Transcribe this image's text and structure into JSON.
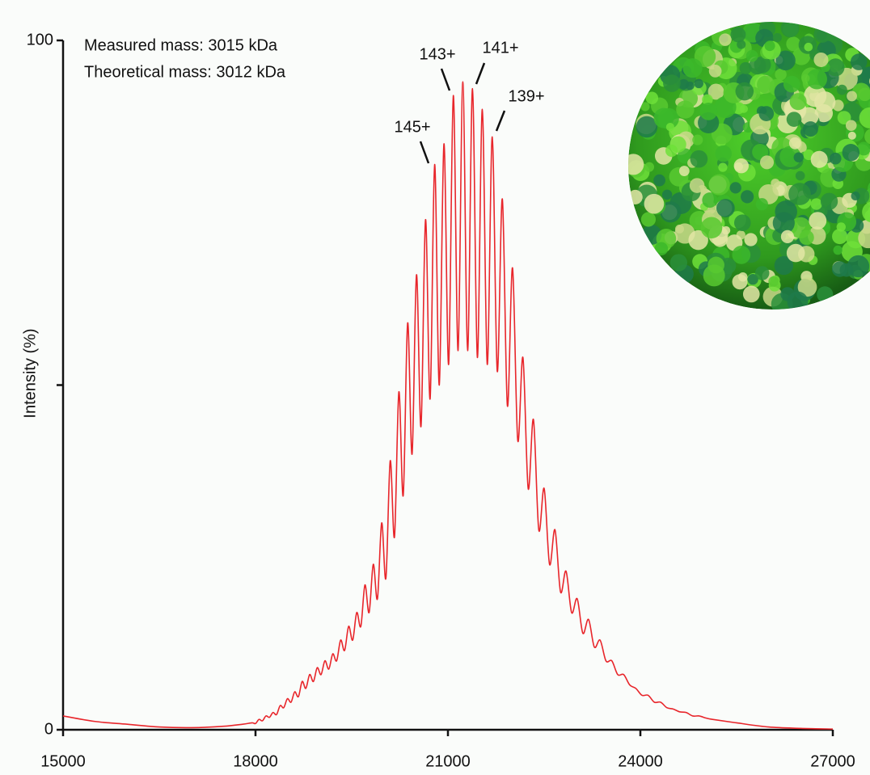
{
  "chart_data": {
    "type": "line",
    "ylabel": "Intensity (%)",
    "annotations": [
      "Measured mass: 3015 kDa",
      "Theoretical mass: 3012 kDa"
    ],
    "peak_labels": [
      "145+",
      "143+",
      "141+",
      "139+"
    ],
    "color": "#e8262b",
    "xlim": [
      15000,
      27000
    ],
    "xticks": [
      15000,
      18000,
      21000,
      24000,
      27000
    ],
    "ylim": [
      0,
      100
    ],
    "yticks": [
      0,
      {
        "value": 50,
        "label": null
      },
      100
    ],
    "x": [
      15000,
      15500,
      16000,
      16500,
      17000,
      17500,
      17800,
      17946,
      18000,
      18054,
      18108,
      18163,
      18218,
      18273,
      18328,
      18384,
      18440,
      18497,
      18554,
      18611,
      18669,
      18727,
      18785,
      18844,
      18903,
      18962,
      19022,
      19082,
      19143,
      19204,
      19265,
      19327,
      19389,
      19452,
      19515,
      19578,
      19642,
      19706,
      19771,
      19836,
      19901,
      19967,
      20033,
      20100,
      20167,
      20235,
      20303,
      20372,
      20441,
      20510,
      20580,
      20651,
      20722,
      20793,
      20865,
      20938,
      21011,
      21084,
      21158,
      21232,
      21307,
      21383,
      21459,
      21536,
      21613,
      21691,
      21769,
      21848,
      21927,
      22007,
      22088,
      22169,
      22251,
      22333,
      22416,
      22500,
      22584,
      22669,
      22755,
      22841,
      22928,
      23015,
      23103,
      23192,
      23282,
      23372,
      23463,
      23555,
      23647,
      23740,
      23834,
      23929,
      24024,
      24120,
      24217,
      24315,
      24413,
      24512,
      24612,
      24713,
      24815,
      24917,
      25021,
      25125,
      25500,
      26000,
      26500,
      27000
    ],
    "values": [
      2,
      1.2,
      0.8,
      0.4,
      0.3,
      0.5,
      0.8,
      1,
      0.9,
      1.5,
      1.3,
      2,
      1.8,
      2.5,
      2.2,
      3.5,
      3.2,
      4.5,
      4,
      5.5,
      4.8,
      7,
      6,
      8,
      7,
      9,
      8,
      10,
      8.8,
      11,
      10,
      13,
      11.5,
      15,
      13,
      17,
      15,
      21,
      17,
      24,
      19,
      30,
      22,
      39,
      28,
      49,
      34,
      59,
      40,
      66,
      44,
      74,
      48,
      82,
      50,
      85,
      53,
      92,
      55,
      94,
      55,
      93,
      54,
      90,
      53,
      86,
      52,
      77,
      47,
      67,
      42,
      54,
      35,
      45,
      29,
      35,
      24,
      29,
      20,
      23,
      17,
      19,
      14,
      16,
      12,
      13,
      10,
      10,
      8,
      8,
      6.5,
      6,
      5,
      5,
      4,
      4,
      3.2,
      3,
      2.6,
      2.5,
      2,
      2,
      1.7,
      1.5,
      1,
      0.4,
      0.2,
      0.1
    ]
  }
}
